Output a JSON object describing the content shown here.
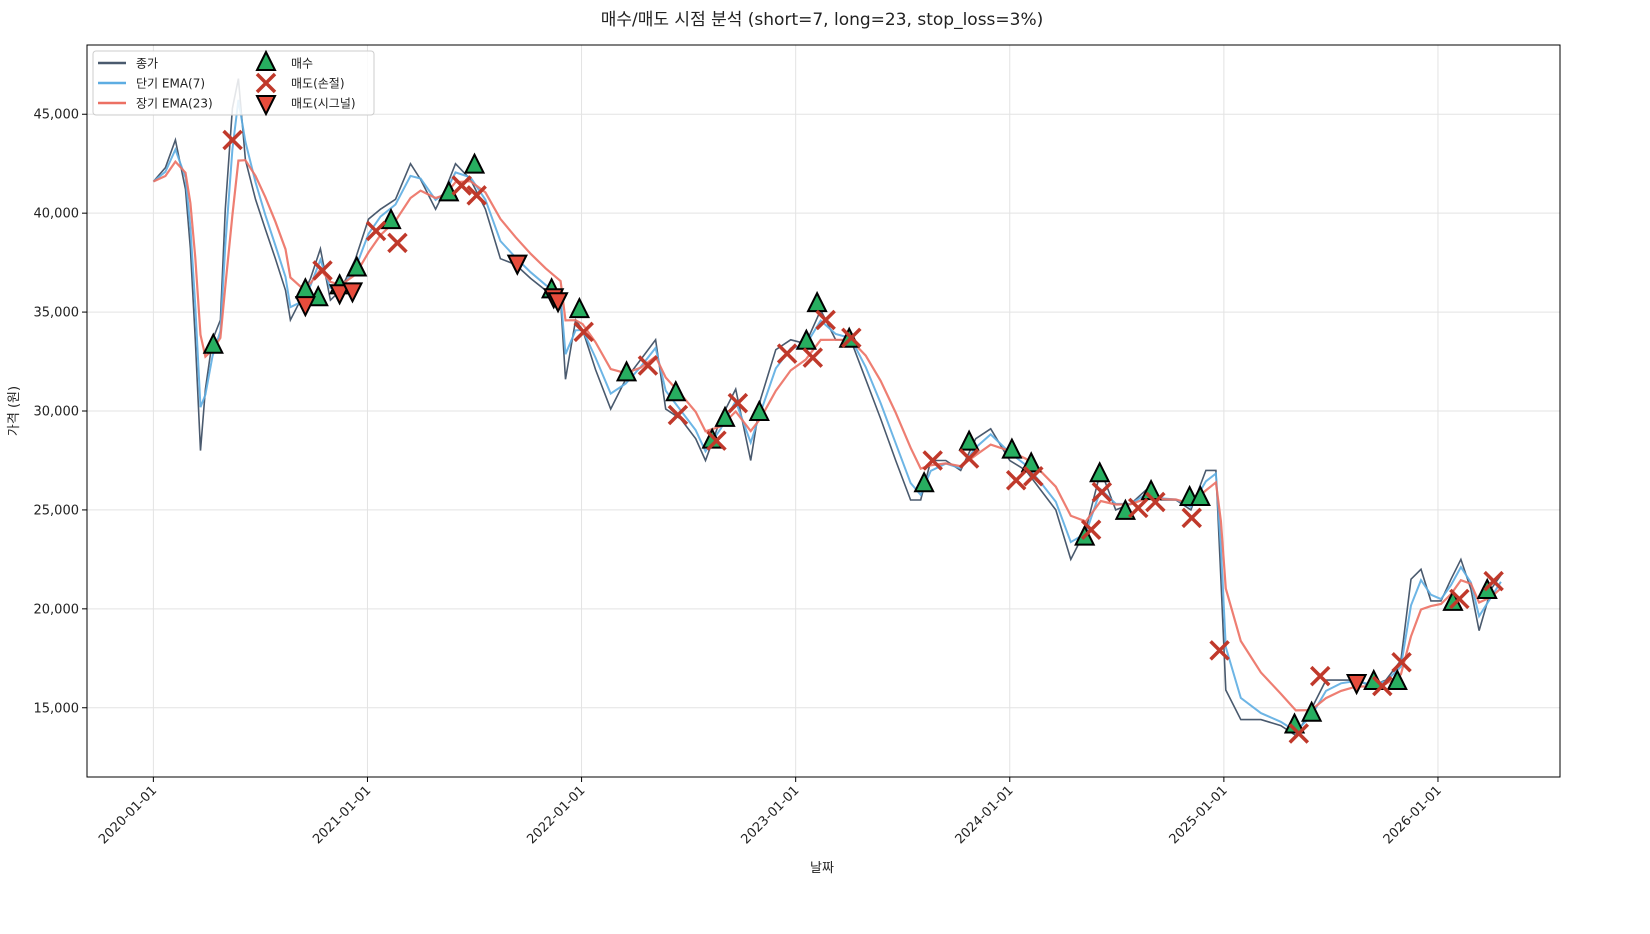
{
  "chart_data": {
    "type": "line",
    "title": "매수/매도 시점 분석 (short=7, long=23, stop_loss=3%)",
    "xlabel": "날짜",
    "ylabel": "가격 (원)",
    "xlim": [
      2019.69,
      2026.57
    ],
    "ylim": [
      11500,
      48500
    ],
    "grid": true,
    "legend_position": "top-left",
    "x_ticks": [
      {
        "value": 2020,
        "label": "2020-01-01"
      },
      {
        "value": 2021,
        "label": "2021-01-01"
      },
      {
        "value": 2022,
        "label": "2022-01-01"
      },
      {
        "value": 2023,
        "label": "2023-01-01"
      },
      {
        "value": 2024,
        "label": "2024-01-01"
      },
      {
        "value": 2025,
        "label": "2025-01-01"
      },
      {
        "value": 2026,
        "label": "2026-01-01"
      }
    ],
    "y_ticks": [
      {
        "value": 15000,
        "label": "15,000"
      },
      {
        "value": 20000,
        "label": "20,000"
      },
      {
        "value": 25000,
        "label": "25,000"
      },
      {
        "value": 30000,
        "label": "30,000"
      },
      {
        "value": 35000,
        "label": "35,000"
      },
      {
        "value": 40000,
        "label": "40,000"
      },
      {
        "value": 45000,
        "label": "45,000"
      }
    ],
    "legend": [
      {
        "key": "close",
        "label": "종가",
        "color": "#4a5a6e",
        "kind": "line"
      },
      {
        "key": "short",
        "label": "단기 EMA(7)",
        "color": "#5dade2",
        "kind": "line"
      },
      {
        "key": "long",
        "label": "장기 EMA(23)",
        "color": "#ec7063",
        "kind": "line"
      },
      {
        "key": "buy",
        "label": "매수",
        "color": "#27ae60",
        "kind": "triangle-up"
      },
      {
        "key": "stop",
        "label": "매도(손절)",
        "color": "#c0392b",
        "kind": "x"
      },
      {
        "key": "signal",
        "label": "매도(시그널)",
        "color": "#e74c3c",
        "kind": "triangle-down"
      }
    ],
    "close": [
      [
        2020.0,
        41600
      ],
      [
        2020.056,
        42300
      ],
      [
        2020.103,
        43700
      ],
      [
        2020.15,
        41200
      ],
      [
        2020.173,
        38200
      ],
      [
        2020.196,
        33600
      ],
      [
        2020.22,
        28000
      ],
      [
        2020.243,
        31100
      ],
      [
        2020.276,
        33600
      ],
      [
        2020.313,
        34600
      ],
      [
        2020.336,
        40200
      ],
      [
        2020.369,
        45300
      ],
      [
        2020.397,
        46800
      ],
      [
        2020.43,
        42700
      ],
      [
        2020.477,
        40700
      ],
      [
        2020.523,
        39200
      ],
      [
        2020.57,
        37700
      ],
      [
        2020.617,
        36100
      ],
      [
        2020.64,
        34600
      ],
      [
        2020.687,
        35600
      ],
      [
        2020.734,
        36700
      ],
      [
        2020.78,
        38200
      ],
      [
        2020.827,
        35600
      ],
      [
        2020.874,
        36100
      ],
      [
        2020.944,
        37700
      ],
      [
        2021.005,
        39700
      ],
      [
        2021.061,
        40200
      ],
      [
        2021.131,
        40700
      ],
      [
        2021.201,
        42500
      ],
      [
        2021.248,
        41700
      ],
      [
        2021.318,
        40200
      ],
      [
        2021.364,
        41200
      ],
      [
        2021.411,
        42500
      ],
      [
        2021.481,
        41700
      ],
      [
        2021.551,
        40200
      ],
      [
        2021.621,
        37700
      ],
      [
        2021.692,
        37400
      ],
      [
        2021.762,
        36700
      ],
      [
        2021.832,
        36100
      ],
      [
        2021.902,
        35600
      ],
      [
        2021.925,
        31600
      ],
      [
        2021.972,
        34600
      ],
      [
        2022.005,
        34100
      ],
      [
        2022.065,
        32100
      ],
      [
        2022.136,
        30100
      ],
      [
        2022.206,
        31600
      ],
      [
        2022.276,
        32600
      ],
      [
        2022.346,
        33600
      ],
      [
        2022.393,
        30100
      ],
      [
        2022.463,
        29600
      ],
      [
        2022.533,
        28600
      ],
      [
        2022.579,
        27500
      ],
      [
        2022.65,
        29600
      ],
      [
        2022.72,
        31100
      ],
      [
        2022.79,
        27500
      ],
      [
        2022.836,
        30600
      ],
      [
        2022.907,
        33100
      ],
      [
        2022.977,
        33600
      ],
      [
        2023.047,
        33400
      ],
      [
        2023.117,
        35100
      ],
      [
        2023.187,
        33600
      ],
      [
        2023.257,
        33600
      ],
      [
        2023.327,
        31600
      ],
      [
        2023.397,
        29600
      ],
      [
        2023.467,
        27500
      ],
      [
        2023.537,
        25500
      ],
      [
        2023.584,
        25500
      ],
      [
        2023.631,
        27500
      ],
      [
        2023.701,
        27500
      ],
      [
        2023.771,
        27000
      ],
      [
        2023.841,
        28600
      ],
      [
        2023.911,
        29100
      ],
      [
        2024.0,
        27500
      ],
      [
        2024.075,
        27000
      ],
      [
        2024.145,
        26000
      ],
      [
        2024.215,
        25000
      ],
      [
        2024.285,
        22500
      ],
      [
        2024.355,
        24000
      ],
      [
        2024.425,
        27000
      ],
      [
        2024.495,
        25000
      ],
      [
        2024.565,
        25300
      ],
      [
        2024.636,
        26000
      ],
      [
        2024.706,
        25500
      ],
      [
        2024.776,
        25500
      ],
      [
        2024.846,
        25000
      ],
      [
        2024.916,
        27000
      ],
      [
        2024.963,
        27000
      ],
      [
        2024.986,
        21500
      ],
      [
        2025.009,
        15900
      ],
      [
        2025.079,
        14400
      ],
      [
        2025.173,
        14400
      ],
      [
        2025.266,
        14100
      ],
      [
        2025.336,
        13600
      ],
      [
        2025.407,
        14900
      ],
      [
        2025.477,
        16400
      ],
      [
        2025.547,
        16400
      ],
      [
        2025.617,
        16400
      ],
      [
        2025.687,
        16100
      ],
      [
        2025.757,
        16400
      ],
      [
        2025.827,
        17400
      ],
      [
        2025.874,
        21500
      ],
      [
        2025.921,
        22000
      ],
      [
        2025.967,
        20400
      ],
      [
        2026.014,
        20400
      ],
      [
        2026.061,
        21500
      ],
      [
        2026.107,
        22500
      ],
      [
        2026.154,
        21000
      ],
      [
        2026.192,
        18900
      ],
      [
        2026.248,
        21000
      ],
      [
        2026.294,
        21700
      ]
    ],
    "buy": [
      [
        2020.28,
        33300
      ],
      [
        2020.71,
        36100
      ],
      [
        2020.77,
        35700
      ],
      [
        2020.87,
        36300
      ],
      [
        2020.95,
        37200
      ],
      [
        2021.11,
        39600
      ],
      [
        2021.38,
        41000
      ],
      [
        2021.5,
        42400
      ],
      [
        2021.86,
        36100
      ],
      [
        2021.99,
        35100
      ],
      [
        2022.21,
        31900
      ],
      [
        2022.44,
        30900
      ],
      [
        2022.61,
        28500
      ],
      [
        2022.67,
        29600
      ],
      [
        2022.83,
        29900
      ],
      [
        2023.05,
        33500
      ],
      [
        2023.1,
        35400
      ],
      [
        2023.25,
        33600
      ],
      [
        2023.6,
        26300
      ],
      [
        2023.81,
        28400
      ],
      [
        2024.01,
        28000
      ],
      [
        2024.1,
        27300
      ],
      [
        2024.35,
        23600
      ],
      [
        2024.42,
        26800
      ],
      [
        2024.54,
        24900
      ],
      [
        2024.66,
        25900
      ],
      [
        2024.84,
        25600
      ],
      [
        2024.89,
        25600
      ],
      [
        2025.33,
        14100
      ],
      [
        2025.41,
        14700
      ],
      [
        2025.7,
        16300
      ],
      [
        2025.81,
        16300
      ],
      [
        2026.07,
        20300
      ],
      [
        2026.23,
        20900
      ]
    ],
    "stop": [
      [
        2020.37,
        43700
      ],
      [
        2020.79,
        37100
      ],
      [
        2021.04,
        39100
      ],
      [
        2021.14,
        38500
      ],
      [
        2021.44,
        41400
      ],
      [
        2021.51,
        40900
      ],
      [
        2022.01,
        34000
      ],
      [
        2022.31,
        32300
      ],
      [
        2022.45,
        29800
      ],
      [
        2022.63,
        28500
      ],
      [
        2022.73,
        30400
      ],
      [
        2022.96,
        32900
      ],
      [
        2023.08,
        32700
      ],
      [
        2023.14,
        34600
      ],
      [
        2023.26,
        33700
      ],
      [
        2023.64,
        27500
      ],
      [
        2023.81,
        27600
      ],
      [
        2024.03,
        26500
      ],
      [
        2024.11,
        26700
      ],
      [
        2024.38,
        24000
      ],
      [
        2024.43,
        25900
      ],
      [
        2024.6,
        25100
      ],
      [
        2024.68,
        25400
      ],
      [
        2024.85,
        24600
      ],
      [
        2024.98,
        17900
      ],
      [
        2025.35,
        13700
      ],
      [
        2025.45,
        16600
      ],
      [
        2025.74,
        16100
      ],
      [
        2025.83,
        17300
      ],
      [
        2026.1,
        20500
      ],
      [
        2026.26,
        21400
      ]
    ],
    "signal": [
      [
        2020.71,
        35400
      ],
      [
        2020.87,
        36000
      ],
      [
        2020.93,
        36100
      ],
      [
        2021.7,
        37500
      ],
      [
        2021.87,
        35800
      ],
      [
        2021.89,
        35600
      ],
      [
        2025.62,
        16300
      ]
    ]
  }
}
